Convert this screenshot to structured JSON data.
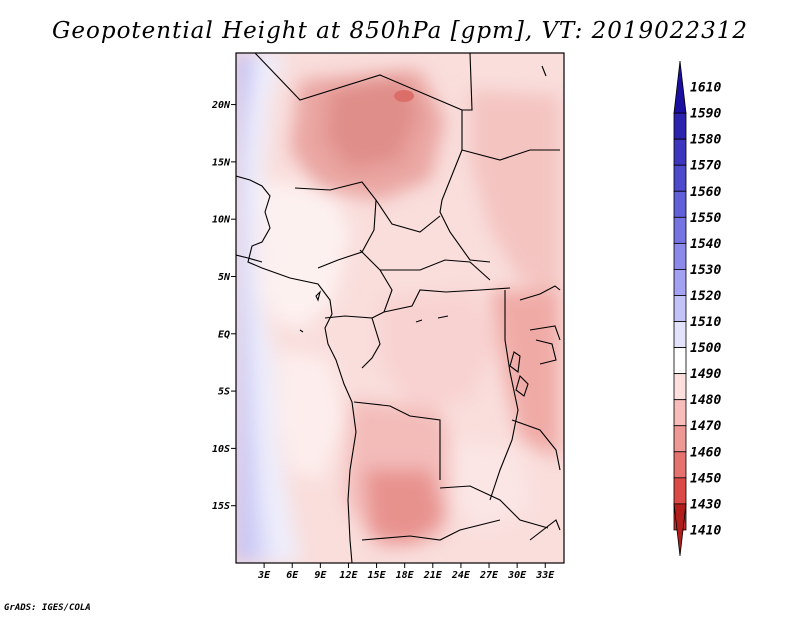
{
  "title": "Geopotential Height at 850hPa [gpm], VT: 2019022312",
  "footer": "GrADS: IGES/COLA",
  "map": {
    "lat_ticks": [
      "20N",
      "15N",
      "10N",
      "5N",
      "EQ",
      "5S",
      "10S",
      "15S"
    ],
    "lon_ticks": [
      "3E",
      "6E",
      "9E",
      "12E",
      "15E",
      "18E",
      "21E",
      "24E",
      "27E",
      "30E",
      "33E"
    ],
    "lat_range": [
      -20,
      24.5
    ],
    "lon_range": [
      0,
      35
    ]
  },
  "colorbar": {
    "labels": [
      "1610",
      "1590",
      "1580",
      "1570",
      "1560",
      "1550",
      "1540",
      "1530",
      "1520",
      "1510",
      "1500",
      "1490",
      "1480",
      "1470",
      "1460",
      "1450",
      "1430",
      "1410"
    ],
    "colors": [
      "#1a0f9e",
      "#2b22ae",
      "#3c35be",
      "#4e4acc",
      "#6260d8",
      "#7674e2",
      "#8b89ea",
      "#a3a1f1",
      "#c3c2f6",
      "#e2e2fb",
      "#ffffff",
      "#fde0de",
      "#f8bdbb",
      "#ef9996",
      "#e5726f",
      "#dc4a47",
      "#c9302d",
      "#b21e1b"
    ]
  },
  "colors": {
    "land_border": "#000000",
    "background": "#ffffff"
  }
}
